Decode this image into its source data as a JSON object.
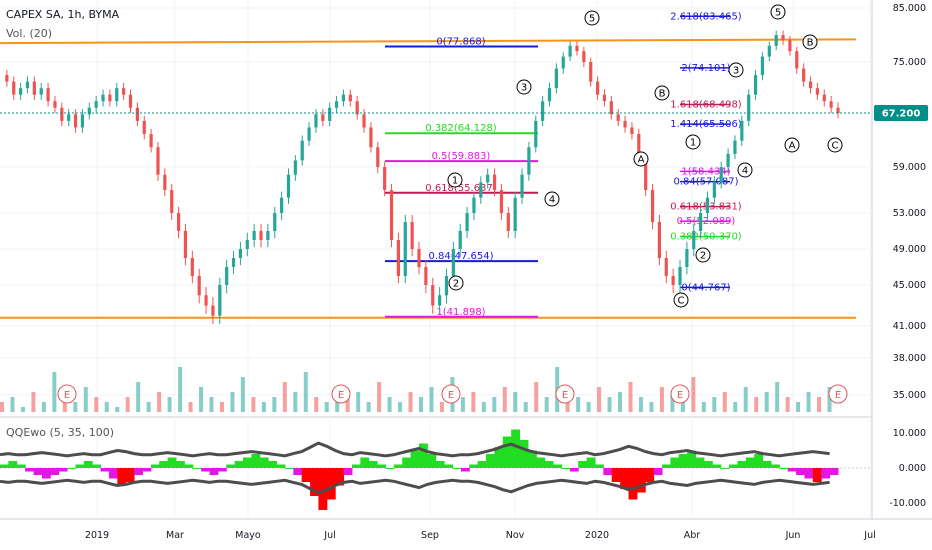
{
  "header": {
    "title": "CAPEX SA, 1h, BYMA",
    "volume_label": "Vol. (20)",
    "oscillator_label": "QQEwo (5, 35, 100)"
  },
  "price_badge": {
    "value": "67.200",
    "color": "#008f88"
  },
  "colors": {
    "up": "#26a69a",
    "down": "#ef5350",
    "trendline": "#f7931a",
    "fib_blue": "#1a1adb",
    "fib_green": "#22dd22",
    "fib_magenta": "#e316e3",
    "fib_crimson": "#c21b52",
    "qqe_line": "#4d4d4d",
    "earnings": "#e0575c"
  },
  "chart_data": [
    {
      "type": "line",
      "title": "CAPEX SA, 1h, BYMA",
      "ylim": [
        33,
        88
      ],
      "y_ticks": [
        "85.000",
        "75.000",
        "67.200",
        "59.000",
        "53.000",
        "49.000",
        "45.000",
        "41.000",
        "38.000",
        "35.000"
      ],
      "x_ticks": [
        "2019",
        "Mar",
        "Mayo",
        "Jul",
        "Sep",
        "Nov",
        "2020",
        "Abr",
        "Jun",
        "Jul"
      ],
      "last_price": 67.2,
      "series": [
        {
          "values": [
            73,
            72,
            70,
            71,
            72,
            70,
            71,
            69,
            68,
            66,
            67,
            65,
            67,
            68,
            69,
            70,
            69,
            71,
            70,
            68,
            66,
            64,
            62,
            58,
            56,
            53,
            51,
            48,
            46,
            44,
            43,
            42,
            45,
            47,
            48,
            49,
            50,
            51,
            50,
            51,
            53,
            55,
            58,
            60,
            63,
            65,
            67,
            66,
            68,
            69,
            70,
            69,
            67,
            65,
            62,
            59,
            56,
            50,
            46,
            52,
            49,
            47,
            45,
            43,
            44,
            46,
            49,
            51,
            53,
            55,
            57,
            58,
            56,
            53,
            51,
            55,
            58,
            62,
            66,
            69,
            71,
            74,
            76,
            78,
            77,
            75,
            72,
            70,
            69,
            67,
            66,
            65,
            64,
            60,
            56,
            52,
            48,
            46,
            45,
            47,
            49,
            51,
            53,
            55,
            57,
            59,
            61,
            63,
            66,
            70,
            73,
            76,
            78,
            80,
            79,
            77,
            74,
            72,
            71,
            70,
            69,
            68,
            67.2
          ]
        }
      ],
      "trendlines": [
        {
          "from": 78.5,
          "to": 79.2
        },
        {
          "from": 41.8,
          "to": 41.8
        }
      ],
      "fib_sets": [
        {
          "levels": [
            {
              "label": "0(77.868)",
              "color": "#1a1adb"
            },
            {
              "label": "0.382(64.128)",
              "color": "#22dd22"
            },
            {
              "label": "0.5(59.883)",
              "color": "#e316e3"
            },
            {
              "label": "0.618(55.637)",
              "color": "#c21b52"
            },
            {
              "label": "0.84(47.654)",
              "color": "#1a1adb"
            },
            {
              "label": "1(41.898)",
              "color": "#e316e3"
            }
          ]
        },
        {
          "levels": [
            {
              "label": "2.618(83.465)",
              "color": "#1a1adb"
            },
            {
              "label": "2(74.101)",
              "color": "#1a1adb"
            },
            {
              "label": "1.618(68.498)",
              "color": "#c21b52"
            },
            {
              "label": "1.414(65.506)",
              "color": "#1a1adb"
            },
            {
              "label": "1(58.434)",
              "color": "#e316e3"
            },
            {
              "label": "0.84(57.087)",
              "color": "#1a1adb"
            },
            {
              "label": "0.618(53.831)",
              "color": "#c21b52"
            },
            {
              "label": "0.5(52.089)",
              "color": "#e316e3"
            },
            {
              "label": "0.382(50.370)",
              "color": "#22dd22"
            },
            {
              "label": "0(44.767)",
              "color": "#1a1adb"
            }
          ]
        }
      ],
      "wave_labels": [
        "1",
        "2",
        "3",
        "4",
        "5",
        "A",
        "B",
        "C",
        "1",
        "2",
        "3",
        "4",
        "5",
        "A",
        "B",
        "C"
      ],
      "earnings_markers": [
        "E",
        "E",
        "E",
        "E",
        "E",
        "E"
      ]
    },
    {
      "type": "bar",
      "title": "Vol. (20)",
      "values": [
        2,
        3,
        1,
        4,
        2,
        8,
        3,
        2,
        5,
        3,
        2,
        1,
        3,
        6,
        2,
        4,
        3,
        9,
        2,
        5,
        3,
        2,
        4,
        7,
        3,
        2,
        3,
        6,
        4,
        8,
        3,
        2,
        5,
        3,
        4,
        2,
        6,
        3,
        2,
        4,
        3,
        5,
        2,
        7,
        3,
        4,
        2,
        3,
        5,
        4,
        2,
        6,
        3,
        9,
        4,
        3,
        2,
        5,
        3,
        4,
        6,
        3,
        2,
        5,
        4,
        3,
        7,
        2,
        3,
        4,
        2,
        5,
        3,
        4,
        6,
        3,
        2,
        4,
        3,
        5
      ]
    },
    {
      "type": "area",
      "title": "QQEwo (5, 35, 100)",
      "ylim": [
        -14,
        14
      ],
      "y_ticks": [
        "10.000",
        "0.000",
        "-10.000"
      ],
      "values": [
        1,
        2,
        1,
        -1,
        -2,
        -3,
        -2,
        -1,
        0,
        1,
        2,
        1,
        -1,
        -3,
        -5,
        -4,
        -2,
        -1,
        1,
        2,
        3,
        2,
        1,
        0,
        -1,
        -2,
        -1,
        1,
        2,
        3,
        4,
        3,
        2,
        1,
        0,
        -2,
        -4,
        -8,
        -12,
        -9,
        -5,
        -2,
        1,
        3,
        2,
        1,
        0,
        1,
        3,
        5,
        7,
        4,
        2,
        1,
        0,
        -1,
        1,
        2,
        4,
        6,
        9,
        11,
        8,
        5,
        3,
        2,
        1,
        0,
        -1,
        2,
        3,
        1,
        -2,
        -4,
        -6,
        -9,
        -7,
        -4,
        -2,
        1,
        3,
        4,
        5,
        3,
        2,
        1,
        0,
        1,
        2,
        3,
        4,
        2,
        1,
        0,
        -1,
        -2,
        -3,
        -4,
        -3,
        -2
      ]
    }
  ]
}
